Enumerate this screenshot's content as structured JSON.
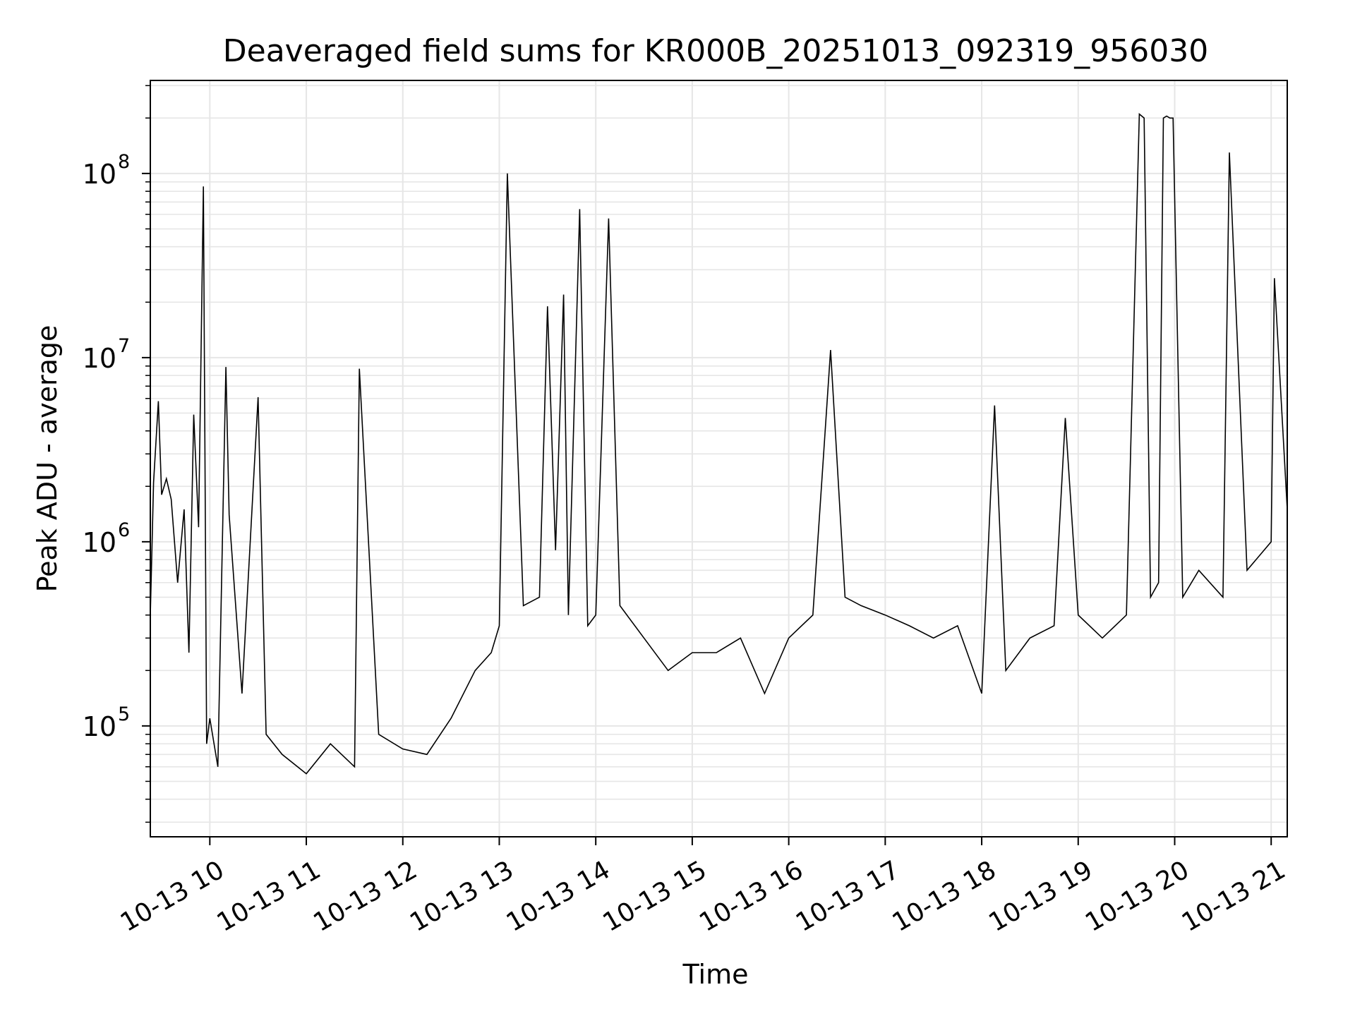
{
  "chart_data": {
    "type": "line",
    "title": "Deaveraged field sums for KR000B_20251013_092319_956030",
    "xlabel": "Time",
    "ylabel": "Peak ADU - average",
    "yscale": "log",
    "ylim": [
      25000,
      320000000
    ],
    "xlim": [
      "2025-10-13 09:23",
      "2025-10-13 21:10"
    ],
    "grid": true,
    "line_color": "#000000",
    "x_ticks": [
      "10-13 10",
      "10-13 11",
      "10-13 12",
      "10-13 13",
      "10-13 14",
      "10-13 15",
      "10-13 16",
      "10-13 17",
      "10-13 18",
      "10-13 19",
      "10-13 20",
      "10-13 21"
    ],
    "y_ticks": [
      {
        "base": "10",
        "exp": "5",
        "value": 100000
      },
      {
        "base": "10",
        "exp": "6",
        "value": 1000000
      },
      {
        "base": "10",
        "exp": "7",
        "value": 10000000
      },
      {
        "base": "10",
        "exp": "8",
        "value": 100000000
      }
    ],
    "series": [
      {
        "x": [
          "2025-10-13 09:23",
          "2025-10-13 09:25",
          "2025-10-13 09:28",
          "2025-10-13 09:30",
          "2025-10-13 09:33",
          "2025-10-13 09:36",
          "2025-10-13 09:40",
          "2025-10-13 09:44",
          "2025-10-13 09:47",
          "2025-10-13 09:50",
          "2025-10-13 09:53",
          "2025-10-13 09:56",
          "2025-10-13 09:58",
          "2025-10-13 10:00",
          "2025-10-13 10:05",
          "2025-10-13 10:10",
          "2025-10-13 10:12",
          "2025-10-13 10:20",
          "2025-10-13 10:30",
          "2025-10-13 10:35",
          "2025-10-13 10:45",
          "2025-10-13 11:00",
          "2025-10-13 11:15",
          "2025-10-13 11:30",
          "2025-10-13 11:33",
          "2025-10-13 11:45",
          "2025-10-13 12:00",
          "2025-10-13 12:15",
          "2025-10-13 12:30",
          "2025-10-13 12:45",
          "2025-10-13 12:55",
          "2025-10-13 13:00",
          "2025-10-13 13:05",
          "2025-10-13 13:15",
          "2025-10-13 13:25",
          "2025-10-13 13:30",
          "2025-10-13 13:35",
          "2025-10-13 13:40",
          "2025-10-13 13:43",
          "2025-10-13 13:50",
          "2025-10-13 13:55",
          "2025-10-13 14:00",
          "2025-10-13 14:08",
          "2025-10-13 14:15",
          "2025-10-13 14:30",
          "2025-10-13 14:45",
          "2025-10-13 15:00",
          "2025-10-13 15:15",
          "2025-10-13 15:30",
          "2025-10-13 15:45",
          "2025-10-13 16:00",
          "2025-10-13 16:15",
          "2025-10-13 16:26",
          "2025-10-13 16:35",
          "2025-10-13 16:45",
          "2025-10-13 17:00",
          "2025-10-13 17:15",
          "2025-10-13 17:30",
          "2025-10-13 17:45",
          "2025-10-13 18:00",
          "2025-10-13 18:08",
          "2025-10-13 18:15",
          "2025-10-13 18:30",
          "2025-10-13 18:45",
          "2025-10-13 18:52",
          "2025-10-13 19:00",
          "2025-10-13 19:15",
          "2025-10-13 19:30",
          "2025-10-13 19:38",
          "2025-10-13 19:41",
          "2025-10-13 19:45",
          "2025-10-13 19:50",
          "2025-10-13 19:53",
          "2025-10-13 19:55",
          "2025-10-13 19:57",
          "2025-10-13 19:59",
          "2025-10-13 20:05",
          "2025-10-13 20:15",
          "2025-10-13 20:30",
          "2025-10-13 20:34",
          "2025-10-13 20:45",
          "2025-10-13 21:00",
          "2025-10-13 21:02",
          "2025-10-13 21:10"
        ],
        "y": [
          400000,
          2100000,
          5800000,
          1800000,
          2200000,
          1700000,
          600000,
          1500000,
          250000,
          4900000,
          1200000,
          85000000,
          80000,
          110000,
          60000,
          8900000,
          1400000,
          150000,
          6100000,
          90000,
          70000,
          55000,
          80000,
          60000,
          8700000,
          90000,
          75000,
          70000,
          110000,
          200000,
          250000,
          350000,
          100000000,
          450000,
          500000,
          19000000,
          900000,
          22000000,
          400000,
          64000000,
          350000,
          400000,
          57000000,
          450000,
          300000,
          200000,
          250000,
          250000,
          300000,
          150000,
          300000,
          400000,
          11000000,
          500000,
          450000,
          400000,
          350000,
          300000,
          350000,
          150000,
          5500000,
          200000,
          300000,
          350000,
          4700000,
          400000,
          300000,
          400000,
          210000000,
          200000000,
          500000,
          600000,
          200000000,
          205000000,
          200000000,
          200000000,
          500000,
          700000,
          500000,
          130000000,
          700000,
          1000000,
          27000000,
          1500000
        ]
      }
    ]
  }
}
